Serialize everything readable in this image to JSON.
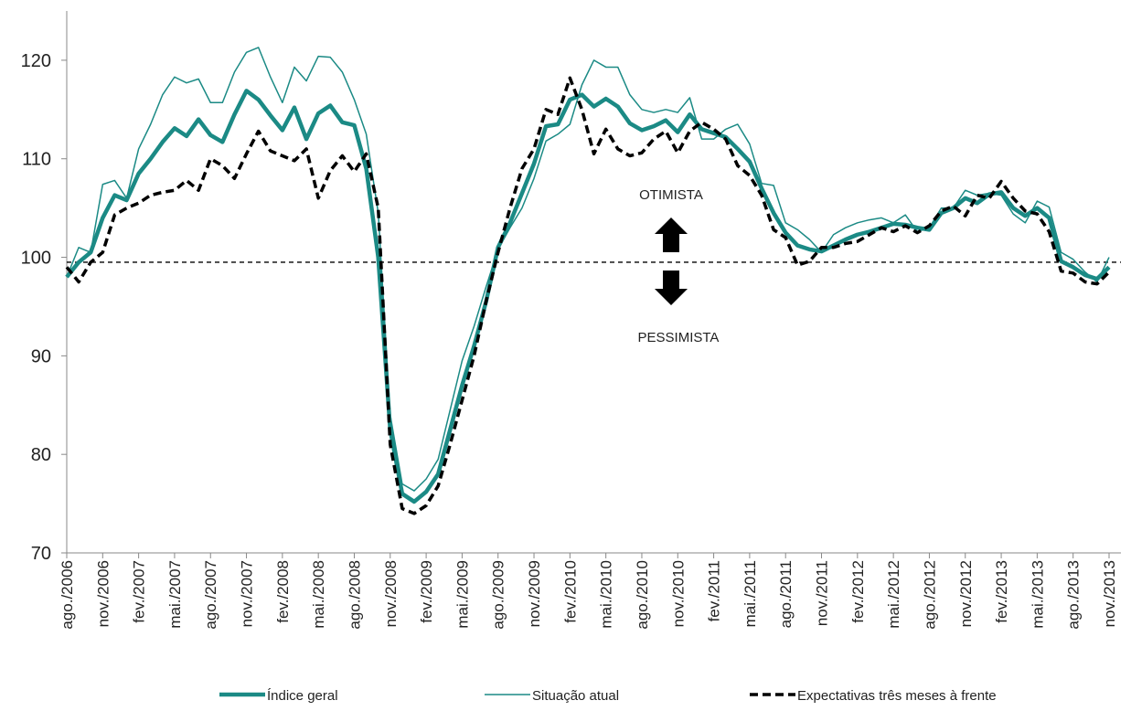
{
  "chart_data": {
    "type": "line",
    "categories": [
      "ago./2006",
      null,
      null,
      "nov./2006",
      null,
      null,
      "fev./2007",
      null,
      null,
      "mai./2007",
      null,
      null,
      "ago./2007",
      null,
      null,
      "nov./2007",
      null,
      null,
      "fev./2008",
      null,
      null,
      "mai./2008",
      null,
      null,
      "ago./2008",
      null,
      null,
      "nov./2008",
      null,
      null,
      "fev./2009",
      null,
      null,
      "mai./2009",
      null,
      null,
      "ago./2009",
      null,
      null,
      "nov./2009",
      null,
      null,
      "fev./2010",
      null,
      null,
      "mai./2010",
      null,
      null,
      "ago./2010",
      null,
      null,
      "nov./2010",
      null,
      null,
      "fev./2011",
      null,
      null,
      "mai./2011",
      null,
      null,
      "ago./2011",
      null,
      null,
      "nov./2011",
      null,
      null,
      "fev./2012",
      null,
      null,
      "mai./2012",
      null,
      null,
      "ago./2012",
      null,
      null,
      "nov./2012",
      null,
      null,
      "fev./2013",
      null,
      null,
      "mai./2013",
      null,
      null,
      "ago./2013",
      null,
      null,
      "nov./2013"
    ],
    "series": [
      {
        "name": "Índice geral",
        "color": "#1b8a85",
        "style": "thick",
        "values": [
          98,
          99.5,
          100.5,
          104,
          106.3,
          105.8,
          108.5,
          110,
          111.7,
          113.1,
          112.3,
          114,
          112.4,
          111.7,
          114.5,
          116.9,
          116,
          114.4,
          112.9,
          115.2,
          112,
          114.6,
          115.4,
          113.7,
          113.4,
          109,
          100,
          82.5,
          76,
          75.2,
          76.2,
          78,
          82.5,
          87,
          91,
          95.5,
          101,
          103.5,
          106.5,
          109.5,
          113.3,
          113.5,
          116,
          116.5,
          115.3,
          116.1,
          115.3,
          113.6,
          112.9,
          113.3,
          113.9,
          112.7,
          114.5,
          113,
          112.6,
          112.2,
          111,
          109.7,
          107,
          104.5,
          102.5,
          101.2,
          100.8,
          100.6,
          101.2,
          101.8,
          102.3,
          102.6,
          103,
          103.4,
          103.3,
          103,
          102.8,
          104.5,
          105,
          106,
          105.5,
          106.4,
          106.6,
          105,
          104.2,
          105,
          104,
          99.6,
          99,
          98.2,
          97.8,
          99
        ]
      },
      {
        "name": "Situação atual",
        "color": "#1b8a85",
        "style": "thin",
        "values": [
          98,
          101,
          100.5,
          107.4,
          107.8,
          106,
          111,
          113.5,
          116.5,
          118.3,
          117.7,
          118.1,
          115.7,
          115.7,
          118.8,
          120.8,
          121.3,
          118.3,
          115.7,
          119.3,
          117.9,
          120.4,
          120.3,
          118.8,
          116,
          112.5,
          104.5,
          84,
          77,
          76.3,
          77.5,
          79.5,
          84.5,
          89.5,
          93,
          97,
          100.8,
          103,
          105,
          108,
          111.8,
          112.5,
          113.5,
          117.5,
          120,
          119.3,
          119.3,
          116.5,
          115,
          114.7,
          115,
          114.7,
          116.2,
          112,
          112,
          113,
          113.5,
          111.5,
          107.5,
          107.3,
          103.5,
          102.8,
          101.8,
          100.5,
          102.3,
          103,
          103.5,
          103.8,
          104,
          103.5,
          104.3,
          102.6,
          103,
          105,
          105,
          106.8,
          106.3,
          106.5,
          106.3,
          104.4,
          103.5,
          105.7,
          105.1,
          100.5,
          99.8,
          98.5,
          97.5,
          100
        ]
      },
      {
        "name": "Expectativas três meses à frente",
        "color": "#000000",
        "style": "dashed",
        "values": [
          99,
          97.5,
          99.5,
          100.5,
          104.3,
          105,
          105.5,
          106.3,
          106.6,
          106.8,
          107.8,
          106.8,
          110,
          109.3,
          108,
          110.5,
          112.8,
          110.8,
          110.3,
          109.8,
          111,
          106,
          108.8,
          110.3,
          108.7,
          110.5,
          105,
          81,
          74.5,
          74,
          74.8,
          76.8,
          81,
          85.5,
          90,
          95.5,
          100.5,
          105,
          109,
          111,
          115,
          114.5,
          118.2,
          115,
          110.5,
          113,
          111,
          110.3,
          110.6,
          112,
          112.8,
          110.6,
          112.8,
          113.7,
          113,
          112,
          109.3,
          108.3,
          106.3,
          102.8,
          102,
          99.2,
          99.6,
          101,
          101,
          101.4,
          101.6,
          102.3,
          103,
          102.6,
          103.2,
          102.5,
          103.2,
          104.7,
          105.2,
          104.2,
          106.3,
          106,
          107.7,
          106,
          104.7,
          104.4,
          102.6,
          98.6,
          98.4,
          97.5,
          97.3,
          98.5
        ]
      }
    ],
    "ylim": [
      70,
      125
    ],
    "yticks": [
      70,
      80,
      90,
      100,
      110,
      120
    ],
    "reference_line": 99.5,
    "annotations": [
      "OTIMISTA",
      "PESSIMISTA"
    ],
    "legend": "bottom"
  }
}
